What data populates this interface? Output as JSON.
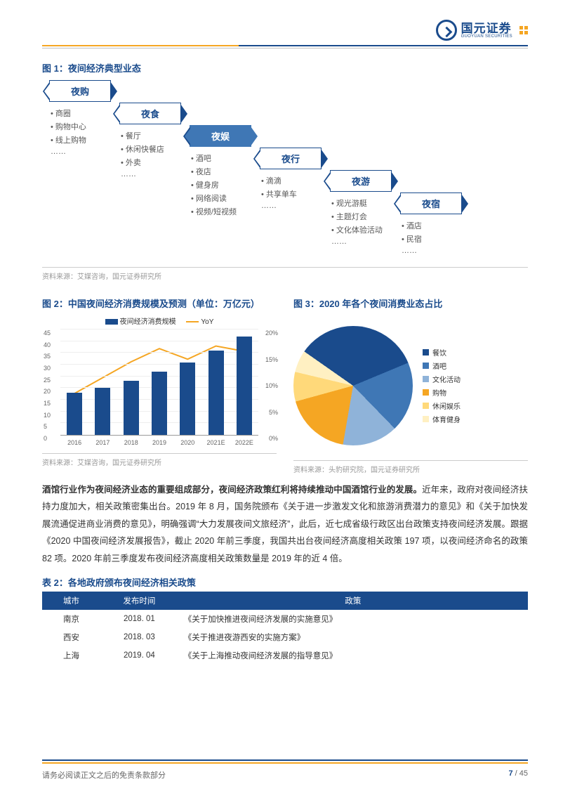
{
  "header": {
    "company_cn": "国元证券",
    "company_en": "GUOYUAN SECURITIES",
    "brand_blue": "#1a4b8c",
    "brand_yellow": "#f5a623"
  },
  "fig1": {
    "title": "图 1：夜间经济典型业态",
    "highlight_index": 2,
    "nodes": [
      {
        "label": "夜购",
        "items": [
          "商圈",
          "购物中心",
          "线上购物",
          "……"
        ]
      },
      {
        "label": "夜食",
        "items": [
          "餐厅",
          "休闲快餐店",
          "外卖",
          "……"
        ]
      },
      {
        "label": "夜娱",
        "items": [
          "酒吧",
          "夜店",
          "健身房",
          "网络阅读",
          "视频/短视频"
        ]
      },
      {
        "label": "夜行",
        "items": [
          "滴滴",
          "共享单车",
          "……"
        ]
      },
      {
        "label": "夜游",
        "items": [
          "观光游艇",
          "主题灯会",
          "文化体验活动",
          "……"
        ]
      },
      {
        "label": "夜宿",
        "items": [
          "酒店",
          "民宿",
          "……"
        ]
      }
    ],
    "source": "资料来源：艾媒咨询，国元证券研究所"
  },
  "fig2": {
    "title": "图 2：中国夜间经济消费规模及预测（单位：万亿元）",
    "legend_bar": "夜间经济消费规模",
    "legend_line": "YoY",
    "categories": [
      "2016",
      "2017",
      "2018",
      "2019",
      "2020",
      "2021E",
      "2022E"
    ],
    "bar_values": [
      18,
      20,
      23,
      27,
      31,
      36,
      42
    ],
    "line_values_pct": [
      8,
      11,
      14,
      16.5,
      14.5,
      17,
      16
    ],
    "y1_max": 45,
    "y1_step": 5,
    "y2_max": 20,
    "y2_step": 5,
    "bar_color": "#1a4b8c",
    "line_color": "#f5a623",
    "source": "资料来源：艾媒咨询，国元证券研究所"
  },
  "fig3": {
    "title": "图 3：2020 年各个夜间消费业态占比",
    "slices": [
      {
        "label": "餐饮",
        "value": 34,
        "color": "#1a4b8c"
      },
      {
        "label": "酒吧",
        "value": 19,
        "color": "#3f77b5"
      },
      {
        "label": "文化活动",
        "value": 15,
        "color": "#8fb3d9"
      },
      {
        "label": "购物",
        "value": 18,
        "color": "#f5a623"
      },
      {
        "label": "休闲娱乐",
        "value": 8,
        "color": "#ffd97a"
      },
      {
        "label": "体育健身",
        "value": 6,
        "color": "#fff0c2"
      }
    ],
    "source": "资料来源：头豹研究院，国元证券研究所"
  },
  "paragraph": {
    "bold_lead": "酒馆行业作为夜间经济业态的重要组成部分，夜间经济政策红利将持续推动中国酒馆行业的发展。",
    "rest": "近年来，政府对夜间经济扶持力度加大，相关政策密集出台。2019 年 8 月，国务院颁布《关于进一步激发文化和旅游消费潜力的意见》和《关于加快发展流通促进商业消费的意见》，明确强调“大力发展夜间文旅经济”，此后，近七成省级行政区出台政策支持夜间经济发展。跟据《2020 中国夜间经济发展报告》，截止 2020 年前三季度，我国共出台夜间经济高度相关政策 197 项，以夜间经济命名的政策 82 项。2020 年前三季度发布夜间经济高度相关政策数量是 2019 年的近 4 倍。"
  },
  "table2": {
    "title": "表 2：各地政府颁布夜间经济相关政策",
    "columns": [
      "城市",
      "发布时间",
      "政策"
    ],
    "rows": [
      [
        "南京",
        "2018. 01",
        "《关于加快推进夜间经济发展的实施意见》"
      ],
      [
        "西安",
        "2018. 03",
        "《关于推进夜游西安的实施方案》"
      ],
      [
        "上海",
        "2019. 04",
        "《关于上海推动夜间经济发展的指导意见》"
      ]
    ]
  },
  "footer": {
    "disclaimer": "请务必阅读正文之后的免责条款部分",
    "page_current": "7",
    "page_total": "45"
  }
}
